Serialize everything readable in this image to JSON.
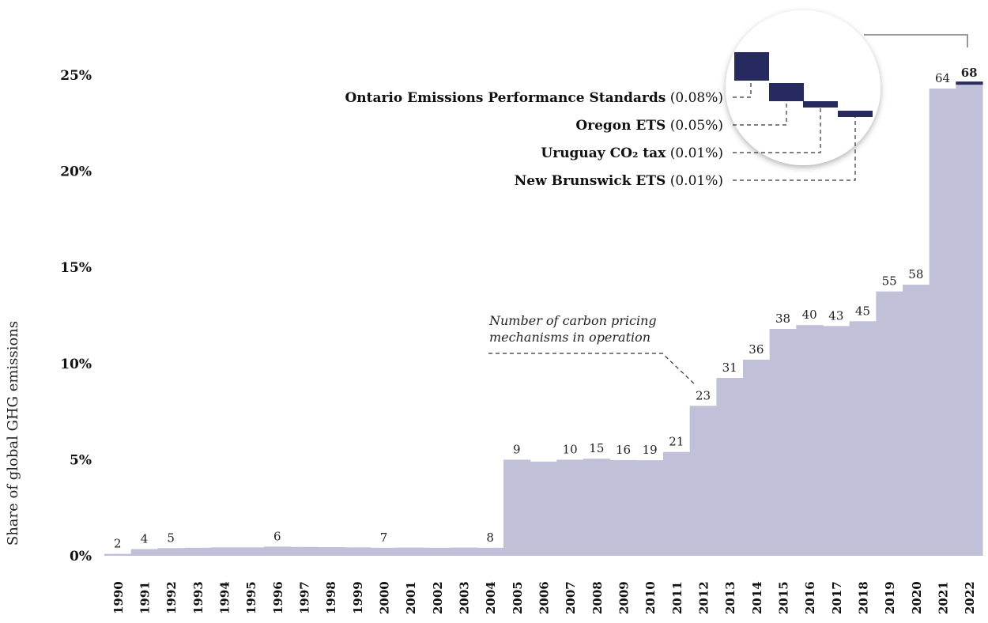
{
  "chart_data": {
    "type": "bar",
    "ylabel": "Share of global GHG emissions",
    "ylim": [
      0,
      25
    ],
    "yticks": [
      "0%",
      "5%",
      "10%",
      "15%",
      "20%",
      "25%"
    ],
    "grid": false,
    "categories": [
      "1990",
      "1991",
      "1992",
      "1993",
      "1994",
      "1995",
      "1996",
      "1997",
      "1998",
      "1999",
      "2000",
      "2001",
      "2002",
      "2003",
      "2004",
      "2005",
      "2006",
      "2007",
      "2008",
      "2009",
      "2010",
      "2011",
      "2012",
      "2013",
      "2014",
      "2015",
      "2016",
      "2017",
      "2018",
      "2019",
      "2020",
      "2021",
      "2022"
    ],
    "values": [
      0.1,
      0.35,
      0.4,
      0.42,
      0.44,
      0.44,
      0.48,
      0.46,
      0.45,
      0.44,
      0.42,
      0.43,
      0.42,
      0.43,
      0.42,
      5.0,
      4.9,
      5.0,
      5.05,
      4.98,
      4.97,
      5.4,
      7.8,
      9.25,
      10.2,
      11.8,
      12.0,
      11.95,
      12.2,
      13.75,
      14.1,
      24.3,
      24.5
    ],
    "mechanism_counts": [
      "2",
      "4",
      "5",
      "",
      "",
      "",
      "6",
      "",
      "",
      "",
      "7",
      "",
      "",
      "",
      "8",
      "9",
      "",
      "10",
      "15",
      "16",
      "19",
      "21",
      "23",
      "31",
      "36",
      "38",
      "40",
      "43",
      "45",
      "55",
      "58",
      "64",
      "68"
    ],
    "annotation": [
      "Number of carbon pricing",
      "mechanisms in operation"
    ],
    "highlight_color": "#262a5e",
    "bar_color": "#c0c1d9",
    "zoom_inset": [
      {
        "name": "Ontario Emissions Performance Standards",
        "share": "(0.08%)",
        "value": 0.08
      },
      {
        "name": "Oregon ETS",
        "share": "(0.05%)",
        "value": 0.05
      },
      {
        "name": "Uruguay CO₂ tax",
        "share": "(0.01%)",
        "value": 0.01
      },
      {
        "name": "New Brunswick ETS",
        "share": "(0.01%)",
        "value": 0.01
      }
    ]
  }
}
